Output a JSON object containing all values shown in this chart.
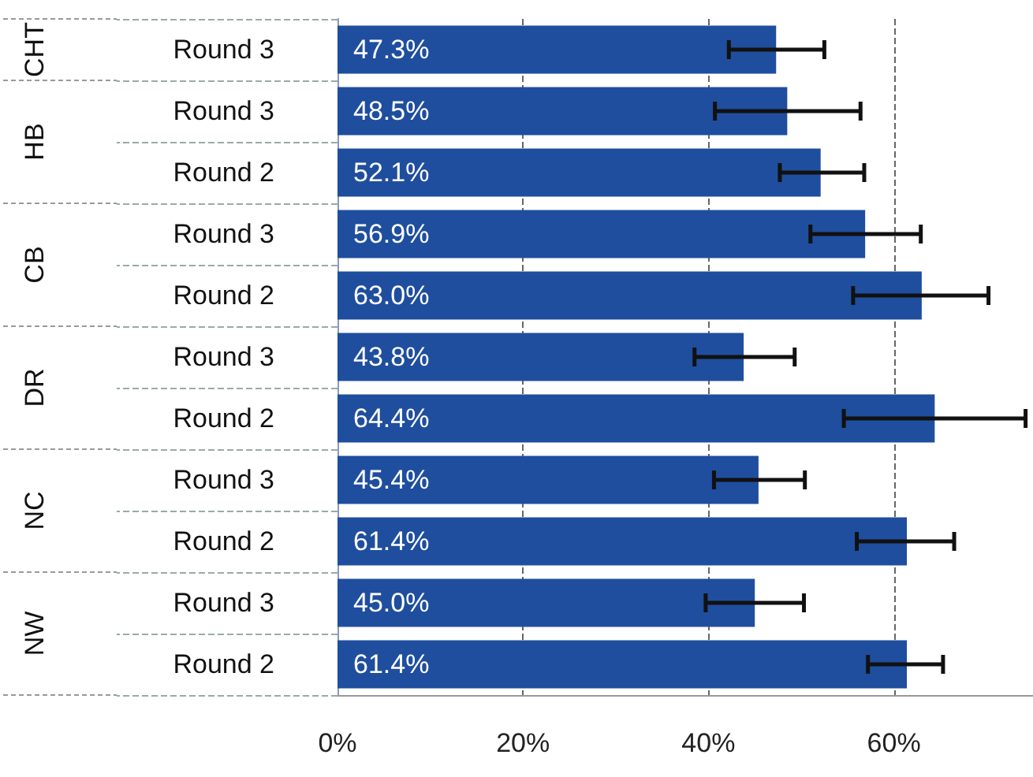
{
  "chart_data": {
    "type": "bar",
    "orientation": "horizontal",
    "categories": [
      "Round 3",
      "Round 3",
      "Round 2",
      "Round 3",
      "Round 2",
      "Round 3",
      "Round 2",
      "Round 3",
      "Round 2",
      "Round 3",
      "Round 2"
    ],
    "values": [
      47.3,
      48.5,
      52.1,
      56.9,
      63.0,
      43.8,
      64.4,
      45.4,
      61.4,
      45.0,
      61.4
    ],
    "color": "#1f4e9e",
    "errors": [
      [
        42.2,
        52.5
      ],
      [
        40.7,
        56.4
      ],
      [
        47.7,
        56.8
      ],
      [
        51.0,
        62.9
      ],
      [
        55.6,
        70.2
      ],
      [
        38.5,
        49.3
      ],
      [
        54.6,
        74.2
      ],
      [
        40.6,
        50.4
      ],
      [
        56.0,
        66.5
      ],
      [
        39.7,
        50.3
      ],
      [
        57.2,
        65.3
      ]
    ],
    "value_labels": [
      "47.3%",
      "48.5%",
      "52.1%",
      "56.9%",
      "63.0%",
      "43.8%",
      "64.4%",
      "45.4%",
      "61.4%",
      "45.0%",
      "61.4%"
    ],
    "annotations": [
      "CHT",
      "HB",
      "CB",
      "DR",
      "NC",
      "NW"
    ],
    "xlim": [
      0,
      75
    ],
    "xticks": [
      {
        "value": 0,
        "label": "0%"
      },
      {
        "value": 20,
        "label": "20%"
      },
      {
        "value": 40,
        "label": "40%"
      },
      {
        "value": 60,
        "label": "60%"
      }
    ],
    "grid": "x"
  }
}
